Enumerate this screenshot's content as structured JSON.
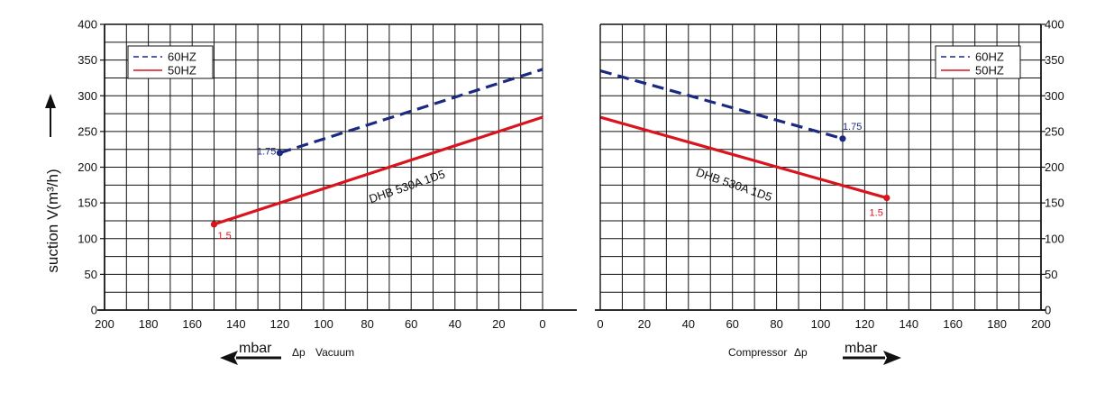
{
  "colors": {
    "series_60": "#1b2a80",
    "series_50": "#d9141e",
    "axis": "#111111"
  },
  "ylabel": "suction V(m³/h)",
  "y_arrow_icon": "arrow-up-icon",
  "chart_data": [
    {
      "type": "line",
      "id": "vacuum",
      "xlabel": "Vacuum",
      "x_prefix": "Δp",
      "unit_label": "mbar",
      "arrow_icon": "arrow-left-icon",
      "xlim": [
        200,
        0
      ],
      "ylim": [
        0,
        400
      ],
      "x_ticks": [
        200,
        180,
        160,
        140,
        120,
        100,
        80,
        60,
        40,
        20,
        0
      ],
      "y_ticks": [
        0,
        50,
        100,
        150,
        200,
        250,
        300,
        350,
        400
      ],
      "grid": true,
      "legend_position": "top-left",
      "model_label": "DHB 530A 1D5",
      "series": [
        {
          "name": "60HZ",
          "style": "dashed",
          "x": [
            120,
            0
          ],
          "y": [
            220,
            337
          ],
          "end_label": "1.75"
        },
        {
          "name": "50HZ",
          "style": "solid",
          "x": [
            150,
            0
          ],
          "y": [
            120,
            270
          ],
          "end_label": "1.5"
        }
      ]
    },
    {
      "type": "line",
      "id": "compressor",
      "xlabel": "Compressor",
      "x_suffix": "Δp",
      "unit_label": "mbar",
      "arrow_icon": "arrow-right-icon",
      "xlim": [
        0,
        200
      ],
      "ylim": [
        0,
        400
      ],
      "x_ticks": [
        0,
        20,
        40,
        60,
        80,
        100,
        120,
        140,
        160,
        180,
        200
      ],
      "y_ticks": [
        0,
        50,
        100,
        150,
        200,
        250,
        300,
        350,
        400
      ],
      "grid": true,
      "legend_position": "top-right",
      "model_label": "DHB 530A 1D5",
      "series": [
        {
          "name": "60HZ",
          "style": "dashed",
          "x": [
            0,
            110
          ],
          "y": [
            335,
            240
          ],
          "end_label": "1.75"
        },
        {
          "name": "50HZ",
          "style": "solid",
          "x": [
            0,
            130
          ],
          "y": [
            270,
            157
          ],
          "end_label": "1.5"
        }
      ]
    }
  ]
}
